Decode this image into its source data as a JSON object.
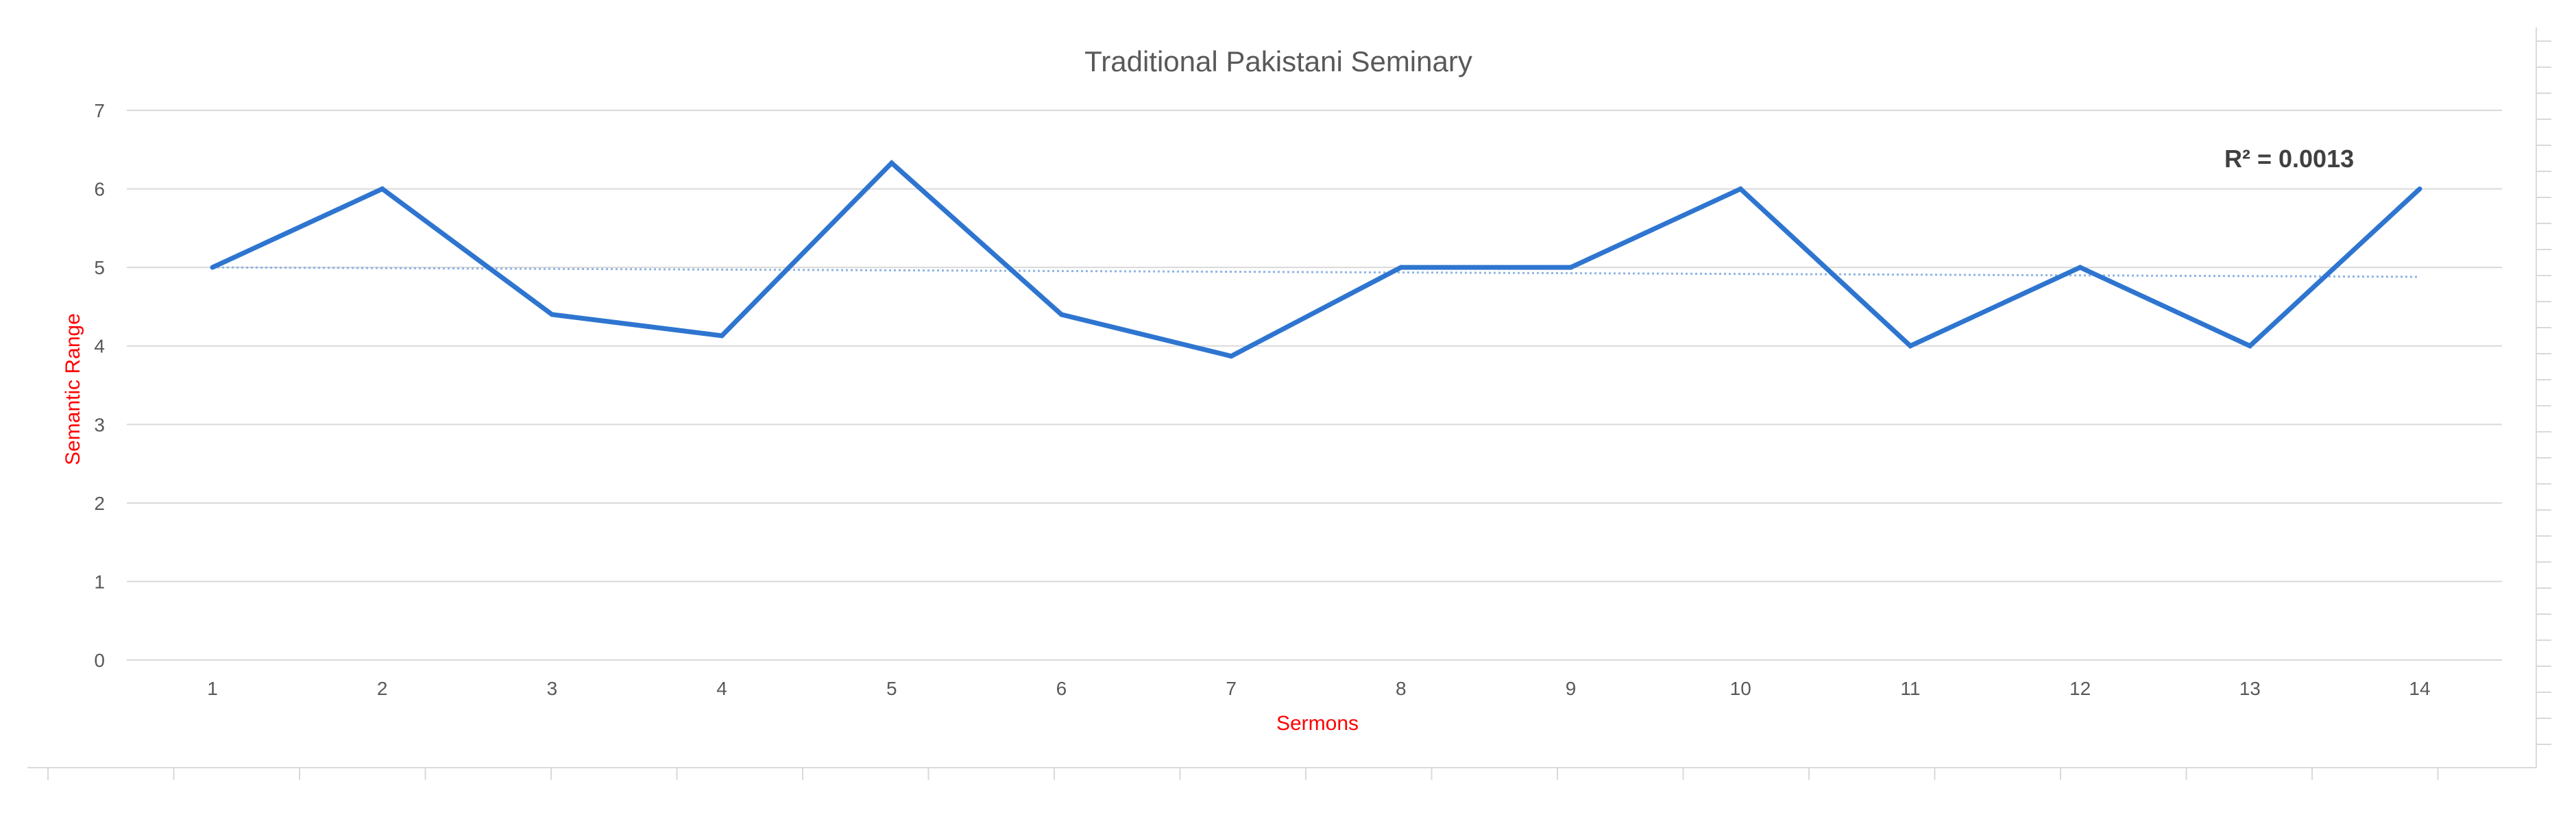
{
  "chart_data": {
    "type": "line",
    "title": "Traditional Pakistani Seminary",
    "xlabel": "Sermons",
    "ylabel": "Semantic Range",
    "categories": [
      "1",
      "2",
      "3",
      "4",
      "5",
      "6",
      "7",
      "8",
      "9",
      "10",
      "11",
      "12",
      "13",
      "14"
    ],
    "series": [
      {
        "values": [
          5.0,
          6.0,
          4.4,
          4.13,
          6.33,
          4.4,
          3.87,
          5.0,
          5.0,
          6.0,
          4.0,
          5.0,
          4.0,
          6.0
        ],
        "color": "#2E75D0"
      }
    ],
    "trendline": {
      "type": "linear",
      "start": 5.0,
      "end": 4.88,
      "color": "#8FB4E6",
      "r_squared_label": "R² = 0.0013"
    },
    "ylim": [
      0,
      7
    ],
    "yticks": [
      "0",
      "1",
      "2",
      "3",
      "4",
      "5",
      "6",
      "7"
    ],
    "grid": true,
    "legend": "none",
    "colors": {
      "grid": "#D9D9D9",
      "axis_label": "#FF0000",
      "tick_label": "#595959",
      "title": "#595959",
      "annotation": "#404040"
    }
  }
}
